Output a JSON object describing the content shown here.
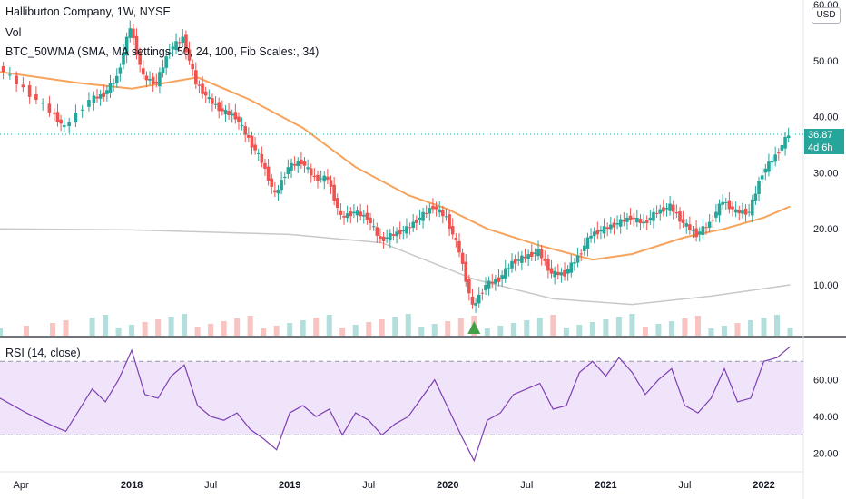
{
  "legend": {
    "title": "Halliburton Company, 1W, NYSE",
    "vol": "Vol",
    "indicator": "BTC_50WMA (SMA, MA settings, 50, 24, 100, Fib Scales:, 34)",
    "rsi": "RSI (14, close)"
  },
  "price_axis": {
    "currency": "USD",
    "ticks": [
      "60.00",
      "50.00",
      "40.00",
      "30.00",
      "20.00",
      "10.00"
    ],
    "last_price": "36.87",
    "countdown": "4d 6h"
  },
  "rsi_axis": {
    "ticks": [
      "60.00",
      "40.00",
      "20.00"
    ]
  },
  "time_axis": {
    "labels": [
      "Apr",
      "2018",
      "Jul",
      "2019",
      "Jul",
      "2020",
      "Jul",
      "2021",
      "Jul",
      "2022"
    ]
  },
  "colors": {
    "up": "#26a69a",
    "down": "#ef5350",
    "ma50": "#f7a35c",
    "ma200": "#c8c8c8",
    "rsi": "#7e3fb2",
    "rsi_band": "#f0e4fb",
    "marker": "#43a047"
  },
  "chart_data": {
    "type": "candlestick",
    "price_series": [
      {
        "date": "2017-03",
        "close": 49
      },
      {
        "date": "2017-05",
        "close": 45
      },
      {
        "date": "2017-07",
        "close": 41
      },
      {
        "date": "2017-08",
        "close": 38
      },
      {
        "date": "2017-10",
        "close": 43
      },
      {
        "date": "2017-11",
        "close": 44
      },
      {
        "date": "2017-12",
        "close": 47
      },
      {
        "date": "2018-01",
        "close": 56
      },
      {
        "date": "2018-02",
        "close": 47
      },
      {
        "date": "2018-03",
        "close": 46
      },
      {
        "date": "2018-04",
        "close": 52
      },
      {
        "date": "2018-05",
        "close": 54
      },
      {
        "date": "2018-06",
        "close": 46
      },
      {
        "date": "2018-07",
        "close": 43
      },
      {
        "date": "2018-08",
        "close": 41
      },
      {
        "date": "2018-09",
        "close": 40
      },
      {
        "date": "2018-10",
        "close": 36
      },
      {
        "date": "2018-11",
        "close": 32
      },
      {
        "date": "2018-12",
        "close": 26
      },
      {
        "date": "2019-01",
        "close": 31
      },
      {
        "date": "2019-02",
        "close": 32
      },
      {
        "date": "2019-03",
        "close": 29
      },
      {
        "date": "2019-04",
        "close": 29
      },
      {
        "date": "2019-05",
        "close": 22
      },
      {
        "date": "2019-06",
        "close": 23
      },
      {
        "date": "2019-07",
        "close": 22
      },
      {
        "date": "2019-08",
        "close": 18
      },
      {
        "date": "2019-09",
        "close": 19
      },
      {
        "date": "2019-10",
        "close": 20
      },
      {
        "date": "2019-11",
        "close": 22
      },
      {
        "date": "2019-12",
        "close": 24
      },
      {
        "date": "2020-01",
        "close": 22
      },
      {
        "date": "2020-02",
        "close": 16
      },
      {
        "date": "2020-03",
        "close": 6
      },
      {
        "date": "2020-04",
        "close": 10
      },
      {
        "date": "2020-05",
        "close": 11
      },
      {
        "date": "2020-06",
        "close": 14
      },
      {
        "date": "2020-07",
        "close": 15
      },
      {
        "date": "2020-08",
        "close": 16
      },
      {
        "date": "2020-09",
        "close": 12
      },
      {
        "date": "2020-10",
        "close": 12
      },
      {
        "date": "2020-11",
        "close": 15
      },
      {
        "date": "2020-12",
        "close": 19
      },
      {
        "date": "2021-01",
        "close": 20
      },
      {
        "date": "2021-02",
        "close": 21
      },
      {
        "date": "2021-03",
        "close": 22
      },
      {
        "date": "2021-04",
        "close": 21
      },
      {
        "date": "2021-05",
        "close": 23
      },
      {
        "date": "2021-06",
        "close": 24
      },
      {
        "date": "2021-07",
        "close": 21
      },
      {
        "date": "2021-08",
        "close": 19
      },
      {
        "date": "2021-09",
        "close": 21
      },
      {
        "date": "2021-10",
        "close": 25
      },
      {
        "date": "2021-11",
        "close": 23
      },
      {
        "date": "2021-12",
        "close": 23
      },
      {
        "date": "2022-01",
        "close": 30
      },
      {
        "date": "2022-02",
        "close": 33
      },
      {
        "date": "2022-03",
        "close": 36.87
      }
    ],
    "ma50_series": [
      {
        "date": "2017-03",
        "value": 48
      },
      {
        "date": "2017-09",
        "value": 46
      },
      {
        "date": "2018-01",
        "value": 45
      },
      {
        "date": "2018-06",
        "value": 47
      },
      {
        "date": "2018-10",
        "value": 43
      },
      {
        "date": "2019-02",
        "value": 38
      },
      {
        "date": "2019-06",
        "value": 31
      },
      {
        "date": "2019-10",
        "value": 26
      },
      {
        "date": "2020-01",
        "value": 23.5
      },
      {
        "date": "2020-04",
        "value": 20
      },
      {
        "date": "2020-08",
        "value": 17
      },
      {
        "date": "2020-12",
        "value": 14.5
      },
      {
        "date": "2021-03",
        "value": 15.5
      },
      {
        "date": "2021-07",
        "value": 18.5
      },
      {
        "date": "2021-10",
        "value": 20
      },
      {
        "date": "2022-01",
        "value": 22
      },
      {
        "date": "2022-03",
        "value": 24
      }
    ],
    "ma200_series": [
      {
        "date": "2017-03",
        "value": 20
      },
      {
        "date": "2018-01",
        "value": 19.8
      },
      {
        "date": "2019-01",
        "value": 19
      },
      {
        "date": "2019-08",
        "value": 17.5
      },
      {
        "date": "2020-03",
        "value": 11
      },
      {
        "date": "2020-09",
        "value": 7.5
      },
      {
        "date": "2021-03",
        "value": 6.5
      },
      {
        "date": "2021-09",
        "value": 8
      },
      {
        "date": "2022-03",
        "value": 10
      }
    ],
    "rsi_series": [
      {
        "date": "2017-03",
        "value": 50
      },
      {
        "date": "2017-05",
        "value": 42
      },
      {
        "date": "2017-07",
        "value": 35
      },
      {
        "date": "2017-08",
        "value": 32
      },
      {
        "date": "2017-10",
        "value": 55
      },
      {
        "date": "2017-11",
        "value": 48
      },
      {
        "date": "2017-12",
        "value": 60
      },
      {
        "date": "2018-01",
        "value": 76
      },
      {
        "date": "2018-02",
        "value": 52
      },
      {
        "date": "2018-03",
        "value": 50
      },
      {
        "date": "2018-04",
        "value": 62
      },
      {
        "date": "2018-05",
        "value": 68
      },
      {
        "date": "2018-06",
        "value": 46
      },
      {
        "date": "2018-07",
        "value": 40
      },
      {
        "date": "2018-08",
        "value": 38
      },
      {
        "date": "2018-09",
        "value": 42
      },
      {
        "date": "2018-10",
        "value": 33
      },
      {
        "date": "2018-11",
        "value": 28
      },
      {
        "date": "2018-12",
        "value": 22
      },
      {
        "date": "2019-01",
        "value": 42
      },
      {
        "date": "2019-02",
        "value": 46
      },
      {
        "date": "2019-03",
        "value": 40
      },
      {
        "date": "2019-04",
        "value": 44
      },
      {
        "date": "2019-05",
        "value": 30
      },
      {
        "date": "2019-06",
        "value": 42
      },
      {
        "date": "2019-07",
        "value": 38
      },
      {
        "date": "2019-08",
        "value": 30
      },
      {
        "date": "2019-09",
        "value": 36
      },
      {
        "date": "2019-10",
        "value": 40
      },
      {
        "date": "2019-11",
        "value": 50
      },
      {
        "date": "2019-12",
        "value": 60
      },
      {
        "date": "2020-01",
        "value": 45
      },
      {
        "date": "2020-02",
        "value": 30
      },
      {
        "date": "2020-03",
        "value": 16
      },
      {
        "date": "2020-04",
        "value": 38
      },
      {
        "date": "2020-05",
        "value": 42
      },
      {
        "date": "2020-06",
        "value": 52
      },
      {
        "date": "2020-07",
        "value": 55
      },
      {
        "date": "2020-08",
        "value": 58
      },
      {
        "date": "2020-09",
        "value": 44
      },
      {
        "date": "2020-10",
        "value": 46
      },
      {
        "date": "2020-11",
        "value": 64
      },
      {
        "date": "2020-12",
        "value": 70
      },
      {
        "date": "2021-01",
        "value": 62
      },
      {
        "date": "2021-02",
        "value": 72
      },
      {
        "date": "2021-03",
        "value": 64
      },
      {
        "date": "2021-04",
        "value": 52
      },
      {
        "date": "2021-05",
        "value": 60
      },
      {
        "date": "2021-06",
        "value": 66
      },
      {
        "date": "2021-07",
        "value": 46
      },
      {
        "date": "2021-08",
        "value": 42
      },
      {
        "date": "2021-09",
        "value": 50
      },
      {
        "date": "2021-10",
        "value": 66
      },
      {
        "date": "2021-11",
        "value": 48
      },
      {
        "date": "2021-12",
        "value": 50
      },
      {
        "date": "2022-01",
        "value": 70
      },
      {
        "date": "2022-02",
        "value": 72
      },
      {
        "date": "2022-03",
        "value": 78
      }
    ],
    "price_axis_range": [
      0,
      60
    ],
    "rsi_axis_range": [
      10,
      80
    ],
    "rsi_band": [
      30,
      70
    ],
    "x_range": [
      "2017-03",
      "2022-04"
    ],
    "last_price": 36.87
  }
}
